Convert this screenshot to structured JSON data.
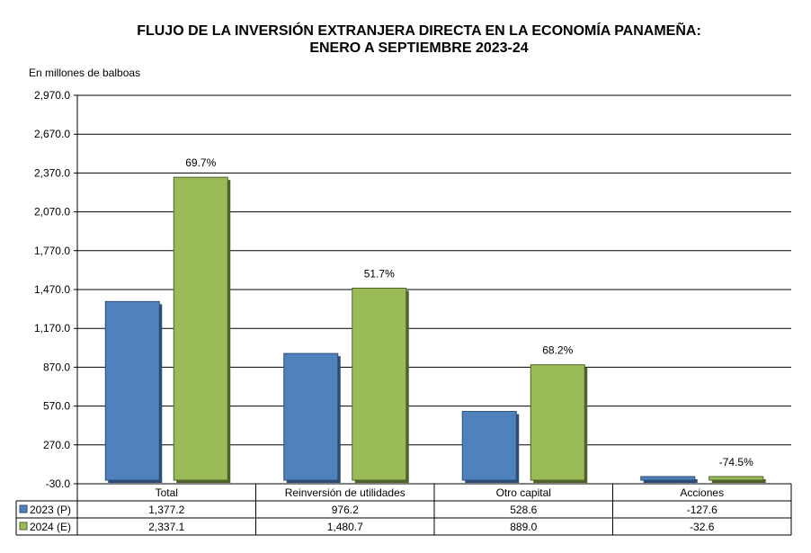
{
  "chart_data": {
    "type": "bar",
    "title_line1": "FLUJO DE LA INVERSIÓN EXTRANJERA DIRECTA EN LA ECONOMÍA PANAMEÑA:",
    "title_line2": "ENERO A SEPTIEMBRE 2023-24",
    "unit_label": "En millones de balboas",
    "ylim": [
      -30,
      2970
    ],
    "yticks": [
      "2,970.0",
      "2,670.0",
      "2,370.0",
      "2,070.0",
      "1,770.0",
      "1,470.0",
      "1,170.0",
      "870.0",
      "570.0",
      "270.0",
      "-30.0"
    ],
    "grid": true,
    "legend": "data-table",
    "categories": [
      "Total",
      "Reinversión de utilidades",
      "Otro capital",
      "Acciones"
    ],
    "series": [
      {
        "name": "2023 (P)",
        "color": "#4f81bd",
        "values": [
          1377.2,
          976.2,
          528.6,
          -127.6
        ],
        "labels": [
          "1,377.2",
          "976.2",
          "528.6",
          "-127.6"
        ]
      },
      {
        "name": "2024 (E)",
        "color": "#9bbb59",
        "values": [
          2337.1,
          1480.7,
          889.0,
          -32.6
        ],
        "labels": [
          "2,337.1",
          "1,480.7",
          "889.0",
          "-32.6"
        ]
      }
    ],
    "annotations": [
      "69.7%",
      "51.7%",
      "68.2%",
      "-74.5%"
    ]
  }
}
